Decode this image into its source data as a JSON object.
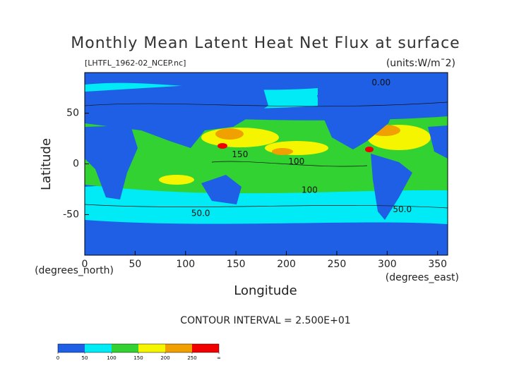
{
  "chart_data": {
    "type": "contour",
    "title": "Monthly Mean Latent Heat Net Flux at surface",
    "subtitle": "[LHTFL_1962-02_NCEP.nc]",
    "units": "(units:W/m¯2)",
    "x_label": "Longitude",
    "y_label": "Latitude",
    "x_unit": "(degrees_east)",
    "y_unit": "(degrees_north)",
    "xlim": [
      0,
      360
    ],
    "xticks": [
      0,
      50,
      100,
      150,
      200,
      250,
      300,
      350
    ],
    "ylim": [
      -90,
      90
    ],
    "yticks": [
      -50,
      0,
      50
    ],
    "note": "CONTOUR INTERVAL = 2.500E+01",
    "contour_labels": [
      {
        "value": 0,
        "label": "0.00",
        "lon": 294,
        "lat": 80
      },
      {
        "value": 150,
        "label": "150",
        "lon": 154,
        "lat": 9
      },
      {
        "value": 100,
        "label": "100",
        "lon": 210,
        "lat": 2
      },
      {
        "value": 100,
        "label": "100",
        "lon": 223,
        "lat": -26
      },
      {
        "value": 50,
        "label": "50.0",
        "lon": 115,
        "lat": -49
      },
      {
        "value": 50,
        "label": "50.0",
        "lon": 315,
        "lat": -45
      }
    ],
    "colorbar": {
      "bins": [
        0,
        50,
        100,
        150,
        200,
        250,
        300
      ],
      "colors": [
        "#1f5fe6",
        "#00ebf5",
        "#32d232",
        "#f5f500",
        "#f0a000",
        "#f00000"
      ],
      "ticks": [
        0,
        50,
        100,
        150,
        200,
        250,
        {
          "value": 300,
          "label": "∞"
        }
      ]
    }
  }
}
